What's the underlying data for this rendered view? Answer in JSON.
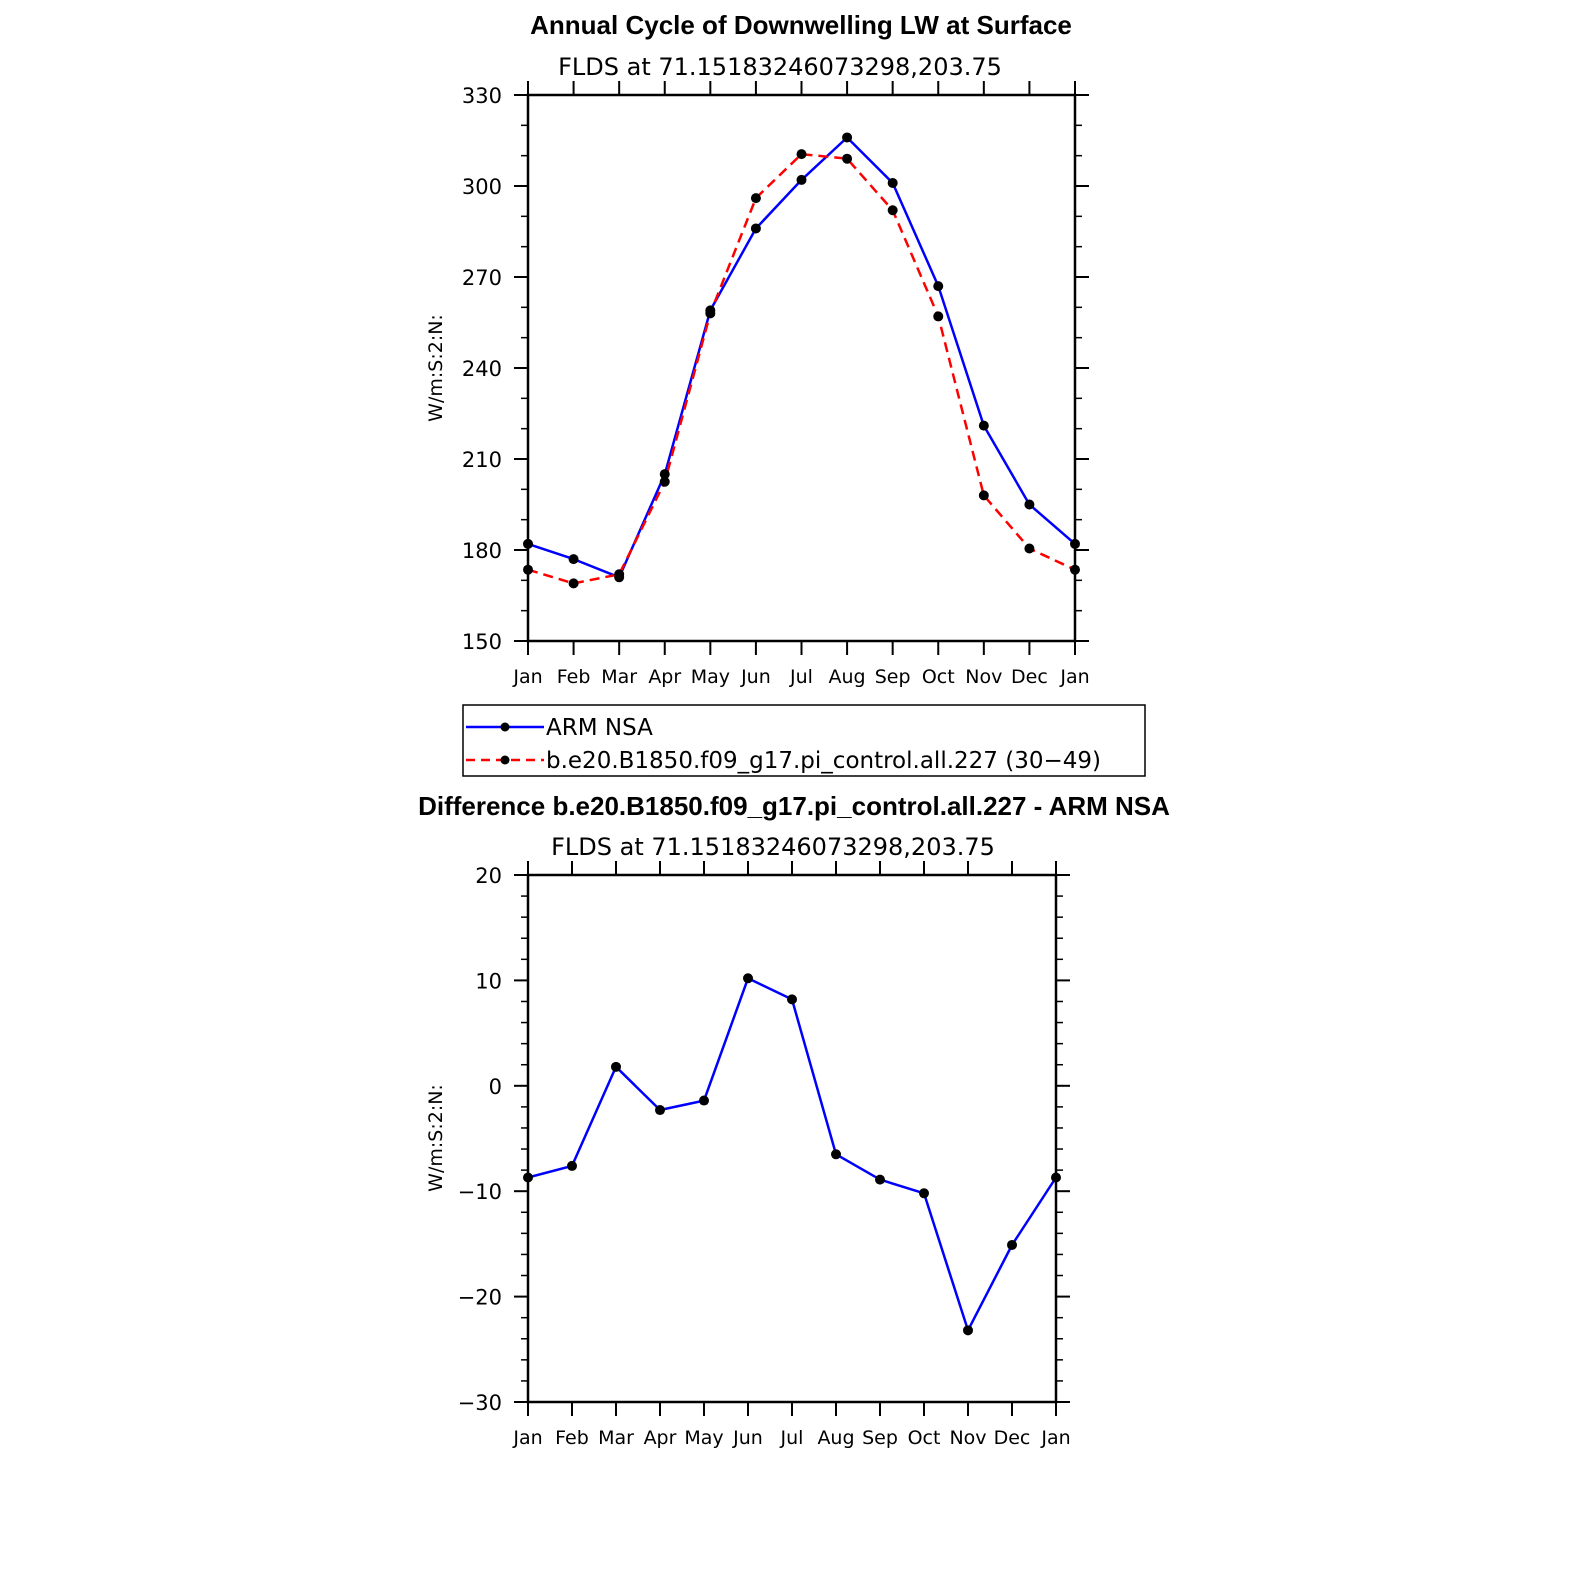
{
  "chart_data": [
    {
      "type": "line",
      "title": "Annual Cycle of Downwelling LW at Surface",
      "subtitle": "FLDS at 71.15183246073298,203.75",
      "ylabel": "W/m:S:2:N:",
      "xlabel": "",
      "ylim": [
        150,
        330
      ],
      "yticks": [
        "150",
        "180",
        "210",
        "240",
        "270",
        "300",
        "330"
      ],
      "categories": [
        "Jan",
        "Feb",
        "Mar",
        "Apr",
        "May",
        "Jun",
        "Jul",
        "Aug",
        "Sep",
        "Oct",
        "Nov",
        "Dec",
        "Jan"
      ],
      "series": [
        {
          "name": "ARM NSA",
          "color": "#0000ff",
          "dash": "solid",
          "values": [
            182,
            177,
            171,
            205,
            259,
            286,
            302,
            316,
            301,
            267,
            221,
            195,
            182
          ]
        },
        {
          "name": "b.e20.B1850.f09_g17.pi_control.all.227 (30−49)",
          "color": "#ff0000",
          "dash": "dashed",
          "values": [
            173.5,
            169,
            172,
            202.5,
            258,
            296,
            310.5,
            309,
            292,
            257,
            198,
            180.5,
            173.5
          ]
        }
      ],
      "legend_position": "below"
    },
    {
      "type": "line",
      "title": "Difference b.e20.B1850.f09_g17.pi_control.all.227 - ARM NSA",
      "subtitle": "FLDS at 71.15183246073298,203.75",
      "ylabel": "W/m:S:2:N:",
      "xlabel": "",
      "ylim": [
        -30,
        20
      ],
      "yticks": [
        "−30",
        "−20",
        "−10",
        "0",
        "10",
        "20"
      ],
      "categories": [
        "Jan",
        "Feb",
        "Mar",
        "Apr",
        "May",
        "Jun",
        "Jul",
        "Aug",
        "Sep",
        "Oct",
        "Nov",
        "Dec",
        "Jan"
      ],
      "series": [
        {
          "color": "#0000ff",
          "dash": "solid",
          "values": [
            -8.7,
            -7.6,
            1.8,
            -2.3,
            -1.4,
            10.2,
            8.2,
            -6.5,
            -8.9,
            -10.2,
            -23.2,
            -15.1,
            -8.7
          ]
        }
      ]
    }
  ]
}
